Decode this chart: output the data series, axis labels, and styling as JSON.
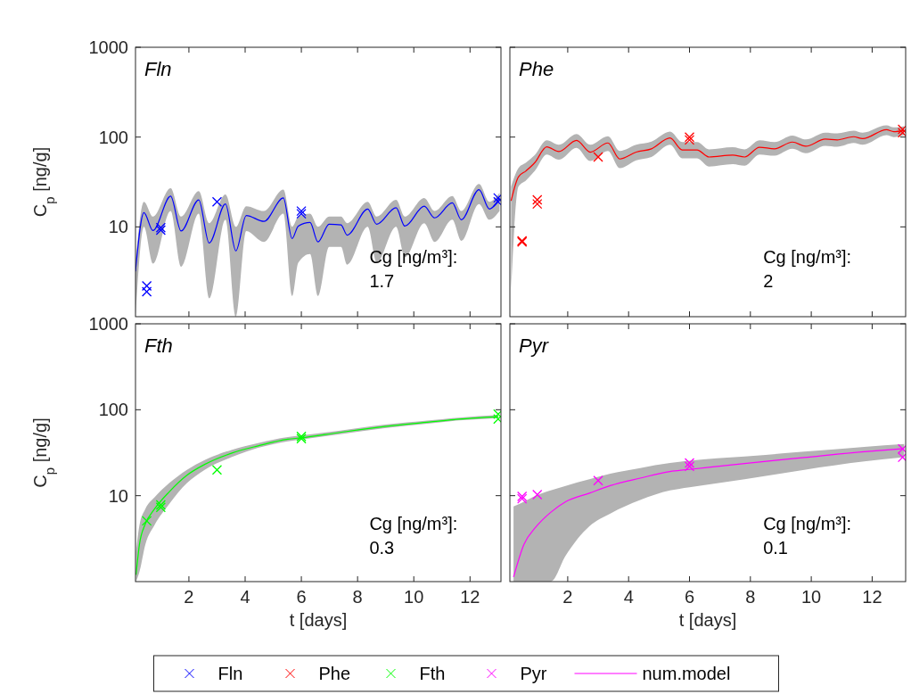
{
  "chart_data": [
    {
      "type": "line",
      "title": "Fln",
      "ylabel": "C$_{p}$ [ng/g]",
      "log": true,
      "xlim": [
        0.1,
        13.1
      ],
      "xticks": [
        2,
        4,
        6,
        8,
        10,
        12
      ],
      "ylim": [
        1,
        1000
      ],
      "yticks": [
        10,
        100,
        1000
      ],
      "tick_labels": "y",
      "grid": false,
      "legend": "bottom",
      "annotations": [
        "Cg [ng/m³]:",
        "1.7"
      ],
      "series": [
        {
          "type": "line",
          "color": "#0000ff",
          "marker": "none",
          "line_style": "solid",
          "x": [
            0.1,
            0.4,
            0.72,
            1.35,
            1.72,
            2.35,
            2.72,
            3.3,
            3.67,
            4.04,
            4.67,
            5.36,
            5.67,
            5.89,
            6.31,
            6.59,
            6.99,
            7.41,
            7.63,
            8.36,
            8.68,
            9.37,
            9.68,
            10.37,
            10.74,
            11.37,
            11.69,
            12.32,
            12.69,
            13.05
          ],
          "values": [
            3.2,
            14.4,
            9.1,
            22,
            9,
            20,
            6.6,
            18,
            5.4,
            13.4,
            11.5,
            21,
            7.4,
            10.2,
            11.2,
            6.8,
            10.7,
            10.5,
            8.1,
            15.8,
            10.7,
            16.3,
            10.2,
            17,
            12.6,
            18.5,
            12,
            26,
            15.8,
            21
          ],
          "lower": [
            1,
            10,
            3.9,
            15,
            3.6,
            14,
            1.6,
            12,
            1,
            9,
            6.8,
            14,
            1.7,
            4,
            5,
            1.7,
            6,
            6,
            3.8,
            10,
            4,
            10,
            4.6,
            11,
            6.8,
            12,
            7,
            18,
            12,
            15
          ],
          "upper": [
            4,
            19,
            13,
            27,
            13,
            25,
            11,
            23,
            10,
            17,
            15,
            26,
            10,
            13,
            14,
            10,
            13,
            13,
            11,
            19,
            13,
            20,
            13,
            21,
            15,
            22,
            15,
            30,
            19,
            24
          ]
        },
        {
          "type": "scatter",
          "name": "Fln",
          "color": "#0000ff",
          "marker": "cross",
          "x": [
            0.5,
            0.5,
            1,
            1,
            3,
            6,
            6,
            13,
            13
          ],
          "values": [
            2.2,
            1.9,
            9.8,
            9.2,
            19,
            15,
            14,
            21,
            19
          ]
        }
      ]
    },
    {
      "type": "line",
      "title": "Phe",
      "log": true,
      "xlim": [
        0.1,
        13.1
      ],
      "xticks": [
        2,
        4,
        6,
        8,
        10,
        12
      ],
      "ylim": [
        1,
        1000
      ],
      "yticks": [
        10,
        100,
        1000
      ],
      "tick_labels": false,
      "grid": false,
      "legend": "bottom",
      "annotations": [
        "Cg [ng/m³]:",
        "2"
      ],
      "series": [
        {
          "type": "line",
          "color": "#ff0000",
          "marker": "none",
          "line_style": "solid",
          "x": [
            0.14,
            0.38,
            0.63,
            0.92,
            1.31,
            1.71,
            2.29,
            2.74,
            3.32,
            3.71,
            4.25,
            4.75,
            5.36,
            5.76,
            6.25,
            6.64,
            7.42,
            7.81,
            8.3,
            8.79,
            9.38,
            9.82,
            10.46,
            10.85,
            11.39,
            11.69,
            12.47,
            12.71,
            13.05
          ],
          "values": [
            19.5,
            36,
            42,
            52,
            78,
            69,
            92,
            68,
            86,
            57,
            68,
            74,
            98,
            72,
            72,
            60,
            63,
            60,
            77,
            74,
            88,
            79,
            95,
            93,
            101,
            96,
            121,
            115,
            119
          ],
          "lower": [
            2,
            28,
            33,
            42,
            64,
            56,
            76,
            54,
            70,
            45,
            55,
            60,
            82,
            58,
            58,
            47,
            50,
            48,
            64,
            62,
            74,
            66,
            80,
            78,
            86,
            82,
            105,
            100,
            105
          ],
          "upper": [
            28,
            45,
            52,
            63,
            92,
            82,
            108,
            82,
            102,
            70,
            82,
            89,
            115,
            88,
            88,
            73,
            77,
            73,
            92,
            88,
            104,
            94,
            112,
            110,
            118,
            112,
            135,
            128,
            132
          ]
        },
        {
          "type": "scatter",
          "name": "Phe",
          "color": "#ff0000",
          "marker": "cross",
          "x": [
            0.5,
            0.5,
            1,
            1,
            3,
            6,
            6,
            13,
            13
          ],
          "values": [
            7,
            6.8,
            20,
            18,
            60,
            100,
            93,
            122,
            112
          ]
        }
      ]
    },
    {
      "type": "line",
      "title": "Fth",
      "xlabel": "t [days]",
      "ylabel": "C$_{p}$ [ng/g]",
      "log": true,
      "xlim": [
        0.1,
        13.1
      ],
      "xticks": [
        2,
        4,
        6,
        8,
        10,
        12
      ],
      "ylim": [
        1,
        1000
      ],
      "yticks": [
        10,
        100,
        1000
      ],
      "grid": false,
      "legend": "bottom",
      "annotations": [
        "Cg [ng/m³]:",
        "0.3"
      ],
      "series": [
        {
          "type": "line",
          "color": "#00ff00",
          "marker": "none",
          "line_style": "solid",
          "x": [
            0.12,
            0.24,
            0.45,
            0.77,
            1.3,
            1.93,
            2.56,
            3.51,
            4.46,
            5.52,
            5.98,
            7.38,
            8.97,
            10.55,
            11.6,
            13
          ],
          "values": [
            1.2,
            2.7,
            4.7,
            6.95,
            11.1,
            17.3,
            23.1,
            31.2,
            38,
            45.4,
            47,
            54.5,
            63.7,
            71.8,
            77.6,
            83
          ],
          "lower": [
            1,
            1.3,
            2.7,
            4.5,
            8,
            14,
            20,
            28,
            36,
            43,
            45,
            52,
            61,
            69,
            75,
            80
          ],
          "upper": [
            2.2,
            4.5,
            7,
            9.5,
            14,
            20,
            26,
            34,
            41,
            48,
            50,
            57,
            67,
            75,
            81,
            87
          ]
        },
        {
          "type": "scatter",
          "name": "Fth",
          "color": "#00ff00",
          "marker": "cross",
          "x": [
            0.5,
            1,
            1,
            3,
            6,
            6,
            13,
            13
          ],
          "values": [
            5.1,
            7.8,
            7.3,
            20,
            49,
            46,
            89,
            78
          ]
        }
      ]
    },
    {
      "type": "line",
      "title": "Pyr",
      "xlabel": "t [days]",
      "log": true,
      "xlim": [
        0.1,
        13.1
      ],
      "xticks": [
        2,
        4,
        6,
        8,
        10,
        12
      ],
      "ylim": [
        1,
        1000
      ],
      "yticks": [
        10,
        100,
        1000
      ],
      "tick_labels": "x",
      "grid": false,
      "legend": "bottom",
      "annotations": [
        "Cg [ng/m³]:",
        "0.1"
      ],
      "series": [
        {
          "type": "scatter",
          "name": "Pyr",
          "color": "#ff00ff",
          "marker": "cross",
          "x": [
            0.5,
            0.5,
            1,
            3,
            6,
            6,
            13,
            13
          ],
          "values": [
            9.8,
            9.2,
            10.3,
            15,
            24,
            22,
            35,
            28
          ]
        },
        {
          "type": "line",
          "name": "num.model",
          "color": "#ff00ff",
          "marker": "none",
          "line_style": "solid",
          "x": [
            0.22,
            0.56,
            0.95,
            1.44,
            1.93,
            2.71,
            3.4,
            4.38,
            5.36,
            6,
            7.81,
            9.77,
            11.74,
            13.05
          ],
          "values": [
            1.13,
            2.7,
            4.3,
            6.4,
            8.5,
            10.7,
            13.1,
            16,
            19.1,
            20.2,
            23.7,
            27.8,
            32.5,
            35.2
          ],
          "lower": [
            1,
            1,
            1,
            1,
            2,
            4.4,
            6.2,
            8.9,
            11.5,
            12.5,
            15.5,
            20,
            25,
            28
          ],
          "upper": [
            7.5,
            8.5,
            10,
            11.5,
            13,
            15.5,
            18,
            21,
            24,
            25.5,
            28.5,
            32.5,
            37,
            40
          ]
        }
      ]
    }
  ]
}
